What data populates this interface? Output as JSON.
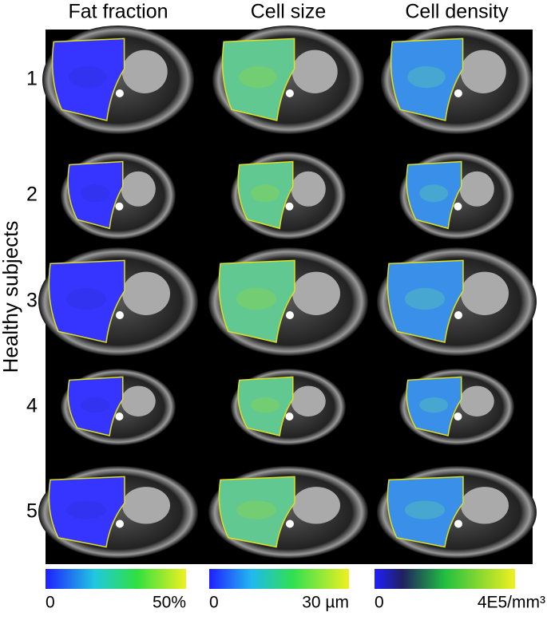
{
  "columns": [
    "Fat fraction",
    "Cell size",
    "Cell density"
  ],
  "rows": [
    "1",
    "2",
    "3",
    "4",
    "5"
  ],
  "side_label": "Healthy subjects",
  "colorbars": [
    {
      "min_label": "0",
      "max_label": "50%"
    },
    {
      "min_label": "0",
      "max_label": "30 µm"
    },
    {
      "min_label": "0",
      "max_label": "4E5/mm³"
    }
  ]
}
